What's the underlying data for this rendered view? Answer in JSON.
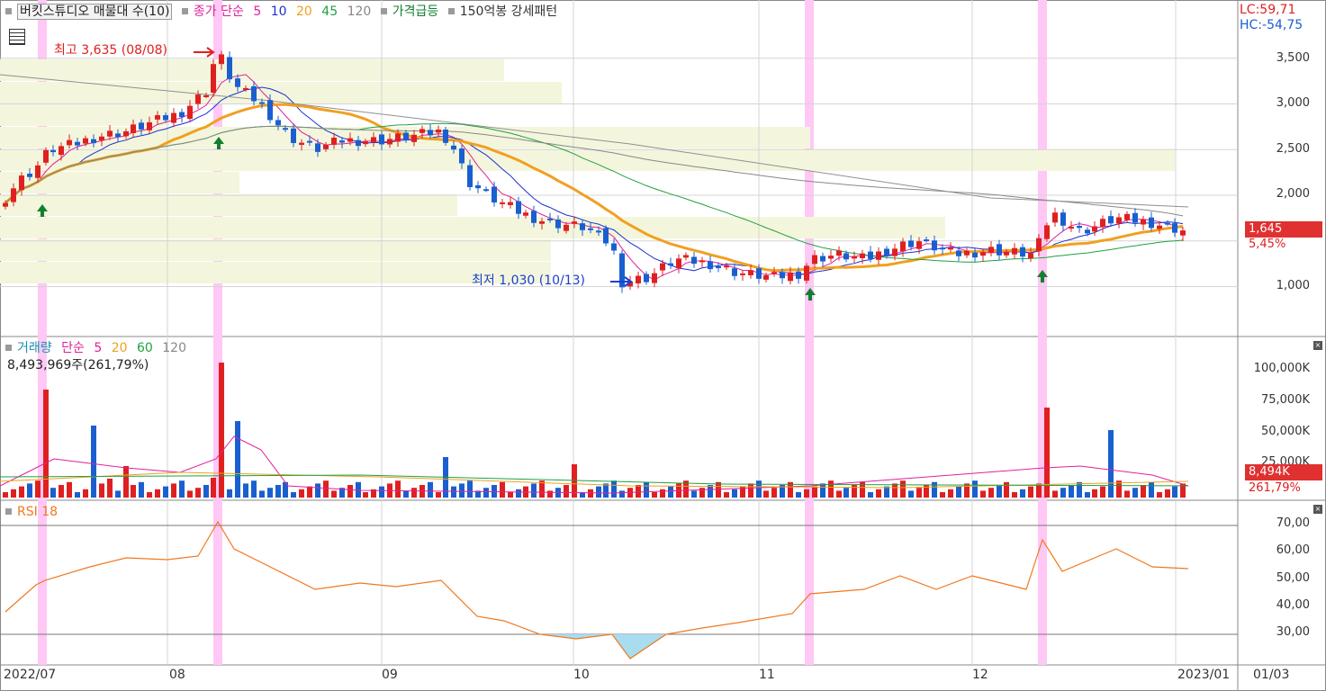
{
  "header": {
    "title": "버킷스튜디오 매물대 수(10)",
    "ma_label": "종가 단순",
    "ma_periods": [
      "5",
      "10",
      "20",
      "45",
      "120"
    ],
    "ma_colors": [
      "#e0209a",
      "#2030d0",
      "#f0a020",
      "#20a040",
      "#888888"
    ],
    "signal_surge": "가격급등",
    "signal_pattern": "150억봉 강세패턴",
    "lc": "LC:59,71",
    "hc": "HC:-54,75"
  },
  "annotations": {
    "high": "최고 3,635 (08/08)",
    "low": "최저 1,030 (10/13)"
  },
  "price_axis": [
    "3,500",
    "3,000",
    "2,500",
    "2,000",
    "1,000"
  ],
  "price_tag": {
    "value": "1,645",
    "change": "5,45%"
  },
  "volume_panel": {
    "title": "거래량",
    "ma_label": "단순",
    "ma_periods": [
      "5",
      "20",
      "60",
      "120"
    ],
    "current": "8,493,969주(261,79%)",
    "axis": [
      "100,000K",
      "75,000K",
      "50,000K",
      "25,000K"
    ],
    "tag_value": "8,494K",
    "tag_change": "261,79%"
  },
  "rsi_panel": {
    "title": "RSI 18",
    "axis": [
      "70,00",
      "60,00",
      "50,00",
      "40,00",
      "30,00"
    ]
  },
  "x_axis": [
    "2022/07",
    "08",
    "09",
    "10",
    "11",
    "12",
    "2023/01"
  ],
  "x_axis_right": "01/03",
  "colors": {
    "up": "#e02020",
    "down": "#1a5fd0",
    "highlight": "#ffc8f5",
    "volume_profile": "#f3f6dc",
    "rsi": "#f07820"
  },
  "chart_data": {
    "type": "candlestick",
    "price_range": [
      500,
      3800
    ],
    "high": 3635,
    "low": 1030,
    "last_close": 1645,
    "rsi_levels": [
      30,
      70
    ]
  }
}
